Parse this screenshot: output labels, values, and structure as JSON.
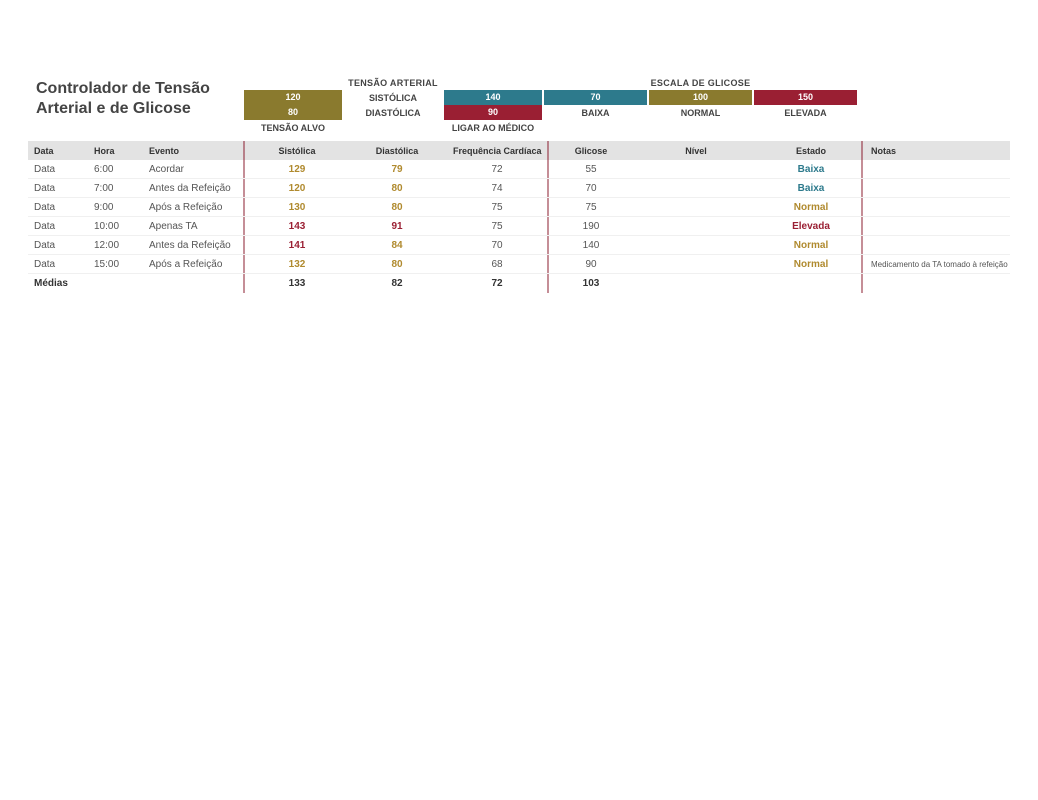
{
  "colors": {
    "olive": "#8a7a2e",
    "teal": "#2d7a8c",
    "crimson": "#9a1f33",
    "bar": "#7a7a7a",
    "header_bg": "#e3e3e3",
    "text_dark": "#444444",
    "status_low": "#2d7a8c",
    "status_normal": "#b08a2e",
    "status_high": "#9a1f33"
  },
  "title": "Controlador de Tensão Arterial e de Glicose",
  "legend": {
    "bp": {
      "heading": "TENSÃO ARTERIAL",
      "target_label": "TENSÃO ALVO",
      "call_label": "LIGAR AO MÉDICO",
      "sys_label": "SISTÓLICA",
      "dia_label": "DIASTÓLICA",
      "target_sys": "120",
      "target_dia": "80",
      "call_sys": "140",
      "call_dia": "90"
    },
    "glucose": {
      "heading": "ESCALA DE GLICOSE",
      "low": "70",
      "normal": "100",
      "high": "150",
      "low_label": "BAIXA",
      "normal_label": "NORMAL",
      "high_label": "ELEVADA"
    }
  },
  "columns": {
    "data": "Data",
    "hora": "Hora",
    "evento": "Evento",
    "sist": "Sistólica",
    "diast": "Diastólica",
    "freq": "Frequência Cardíaca",
    "glic": "Glicose",
    "nivel": "Nível",
    "estado": "Estado",
    "notas": "Notas"
  },
  "glucose_bar": {
    "max": 200
  },
  "rows": [
    {
      "data": "Data",
      "hora": "6:00",
      "evento": "Acordar",
      "sist": 129,
      "diast": 79,
      "freq": 72,
      "glic": 55,
      "estado": "Baixa",
      "estado_color": "#2d7a8c",
      "sist_color": "#b08a2e",
      "diast_color": "#b08a2e",
      "notas": ""
    },
    {
      "data": "Data",
      "hora": "7:00",
      "evento": "Antes da Refeição",
      "sist": 120,
      "diast": 80,
      "freq": 74,
      "glic": 70,
      "estado": "Baixa",
      "estado_color": "#2d7a8c",
      "sist_color": "#b08a2e",
      "diast_color": "#b08a2e",
      "notas": ""
    },
    {
      "data": "Data",
      "hora": "9:00",
      "evento": "Após a Refeição",
      "sist": 130,
      "diast": 80,
      "freq": 75,
      "glic": 75,
      "estado": "Normal",
      "estado_color": "#b08a2e",
      "sist_color": "#b08a2e",
      "diast_color": "#b08a2e",
      "notas": ""
    },
    {
      "data": "Data",
      "hora": "10:00",
      "evento": "Apenas TA",
      "sist": 143,
      "diast": 91,
      "freq": 75,
      "glic": 190,
      "estado": "Elevada",
      "estado_color": "#9a1f33",
      "sist_color": "#9a1f33",
      "diast_color": "#9a1f33",
      "notas": ""
    },
    {
      "data": "Data",
      "hora": "12:00",
      "evento": "Antes da Refeição",
      "sist": 141,
      "diast": 84,
      "freq": 70,
      "glic": 140,
      "estado": "Normal",
      "estado_color": "#b08a2e",
      "sist_color": "#9a1f33",
      "diast_color": "#b08a2e",
      "notas": ""
    },
    {
      "data": "Data",
      "hora": "15:00",
      "evento": "Após a Refeição",
      "sist": 132,
      "diast": 80,
      "freq": 68,
      "glic": 90,
      "estado": "Normal",
      "estado_color": "#b08a2e",
      "sist_color": "#b08a2e",
      "diast_color": "#b08a2e",
      "notas": "Medicamento da TA tomado à refeição"
    }
  ],
  "footer": {
    "label": "Médias",
    "sist": 133,
    "diast": 82,
    "freq": 72,
    "glic": 103
  }
}
